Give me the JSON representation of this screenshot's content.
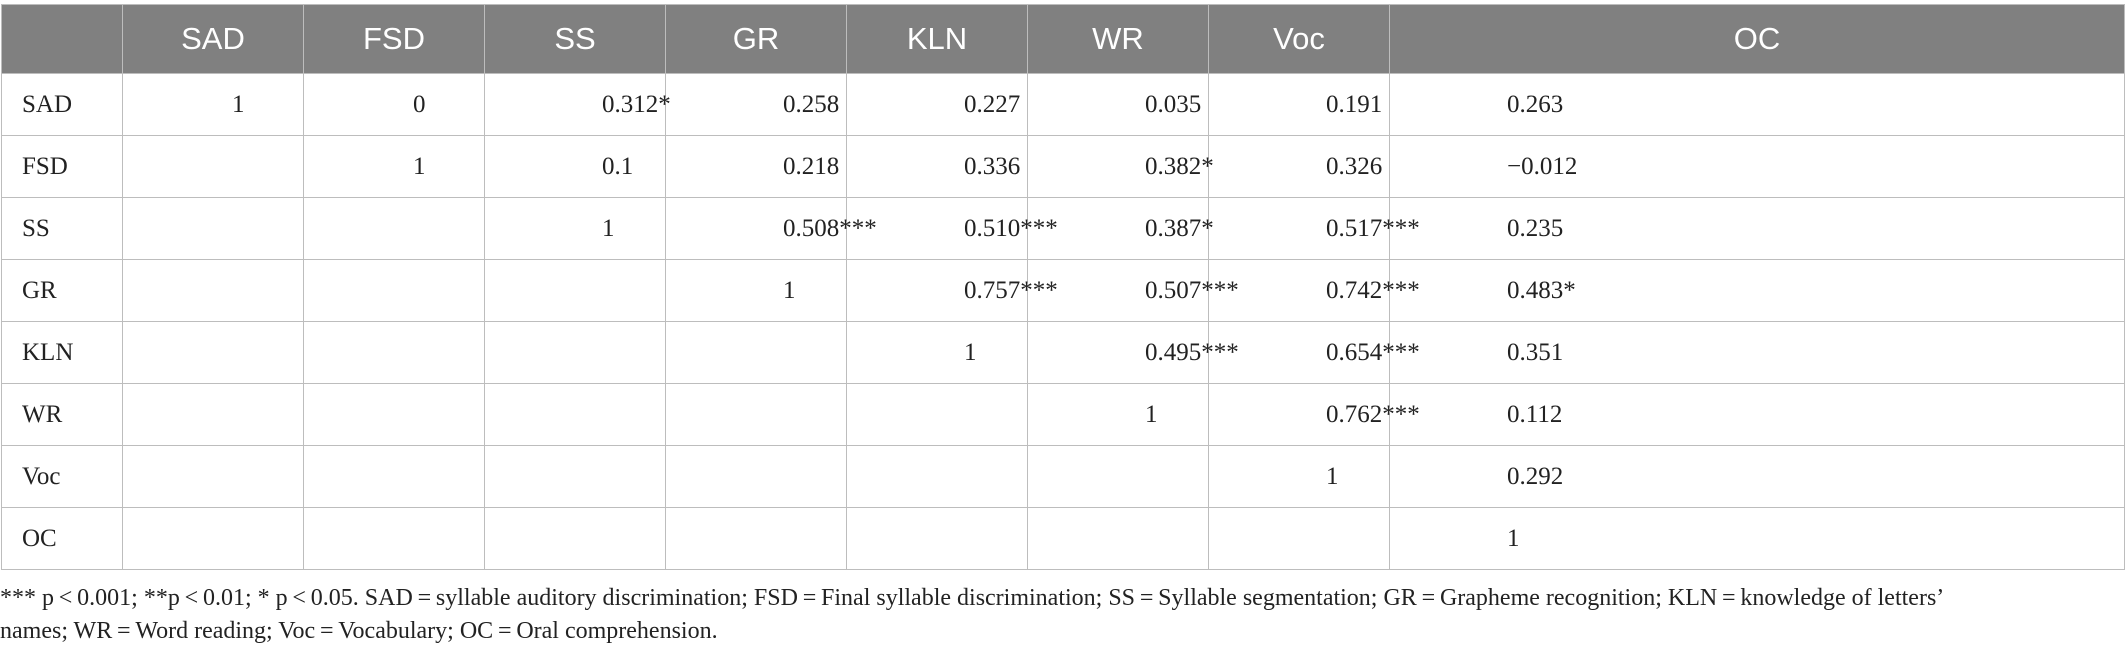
{
  "table": {
    "headers": [
      "",
      "SAD",
      "FSD",
      "SS",
      "GR",
      "KLN",
      "WR",
      "Voc",
      "OC"
    ],
    "rows": [
      {
        "label": "SAD",
        "cells": [
          "1",
          "0",
          "0.312*",
          "0.258",
          "0.227",
          "0.035",
          "0.191",
          "0.263"
        ]
      },
      {
        "label": "FSD",
        "cells": [
          "",
          "1",
          "0.1",
          "0.218",
          "0.336",
          "0.382*",
          "0.326",
          "−0.012"
        ]
      },
      {
        "label": "SS",
        "cells": [
          "",
          "",
          "1",
          "0.508***",
          "0.510***",
          "0.387*",
          "0.517***",
          "0.235"
        ]
      },
      {
        "label": "GR",
        "cells": [
          "",
          "",
          "",
          "1",
          "0.757***",
          "0.507***",
          "0.742***",
          "0.483*"
        ]
      },
      {
        "label": "KLN",
        "cells": [
          "",
          "",
          "",
          "",
          "1",
          "0.495***",
          "0.654***",
          "0.351"
        ]
      },
      {
        "label": "WR",
        "cells": [
          "",
          "",
          "",
          "",
          "",
          "1",
          "0.762***",
          "0.112"
        ]
      },
      {
        "label": "Voc",
        "cells": [
          "",
          "",
          "",
          "",
          "",
          "",
          "1",
          "0.292"
        ]
      },
      {
        "label": "OC",
        "cells": [
          "",
          "",
          "",
          "",
          "",
          "",
          "",
          "1"
        ]
      }
    ]
  },
  "footnote": {
    "line1": "*** p < 0.001; **p < 0.01; * p < 0.05. SAD = syllable auditory discrimination; FSD = Final syllable discrimination; SS = Syllable segmentation; GR = Grapheme recognition; KLN = knowledge of letters’",
    "line2": "names; WR = Word reading; Voc = Vocabulary; OC = Oral comprehension."
  }
}
